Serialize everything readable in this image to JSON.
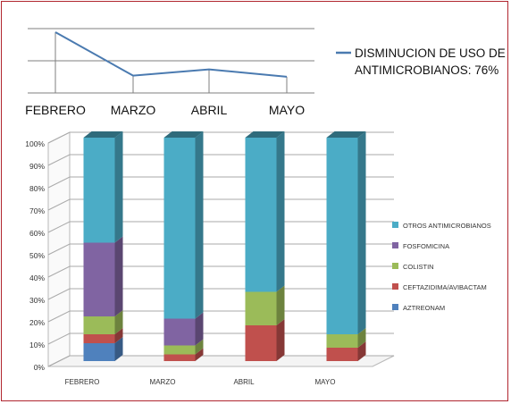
{
  "chart_data": [
    {
      "type": "line",
      "categories": [
        "FEBRERO",
        "MARZO",
        "ABRIL",
        "MAYO"
      ],
      "series": [
        {
          "name": "DISMINUCION DE USO DE ANTIMICROBIANOS: 76%",
          "values": [
            100,
            24,
            35,
            22
          ]
        }
      ],
      "legend_lines": [
        "DISMINUCION DE USO DE",
        "ANTIMICROBIANOS: 76%"
      ],
      "legend_position": "right",
      "grid": true,
      "colors": {
        "line": "#4a7ab0",
        "grid": "#7f7f7f"
      }
    },
    {
      "type": "bar",
      "stacked": "percent",
      "categories": [
        "FEBRERO",
        "MARZO",
        "ABRIL",
        "MAYO"
      ],
      "y_ticks": [
        "0%",
        "10%",
        "20%",
        "30%",
        "40%",
        "50%",
        "60%",
        "70%",
        "80%",
        "90%",
        "100%"
      ],
      "ylim": [
        0,
        100
      ],
      "legend_position": "right",
      "series": [
        {
          "name": "AZTREONAM",
          "color": "#4f81bd",
          "values": [
            8,
            0,
            0,
            0
          ]
        },
        {
          "name": "CEFTAZIDIMA/AVIBACTAM",
          "color": "#c0504d",
          "values": [
            4,
            3,
            16,
            6
          ]
        },
        {
          "name": "COLISTIN",
          "color": "#9bbb59",
          "values": [
            8,
            4,
            15,
            6
          ]
        },
        {
          "name": "FOSFOMICINA",
          "color": "#8064a2",
          "values": [
            33,
            12,
            0,
            0
          ]
        },
        {
          "name": "OTROS ANTIMICROBIANOS",
          "color": "#4bacc6",
          "values": [
            47,
            81,
            69,
            88
          ]
        }
      ]
    }
  ]
}
